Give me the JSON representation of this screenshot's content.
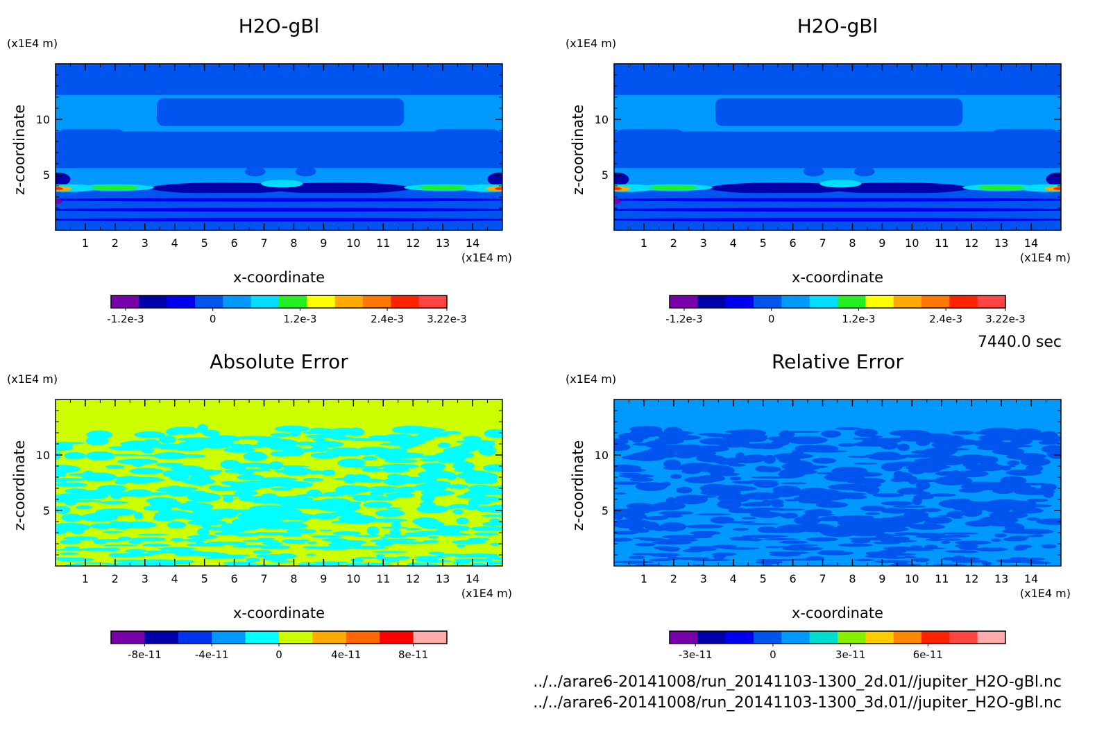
{
  "chart_data": [
    {
      "type": "heatmap",
      "title": "H2O-gBl",
      "xlabel": "x-coordinate",
      "ylabel": "z-coordinate",
      "x_unit": "(x1E4 m)",
      "y_unit": "(x1E4 m)",
      "x_ticks": [
        "1",
        "2",
        "3",
        "4",
        "5",
        "6",
        "7",
        "8",
        "9",
        "10",
        "11",
        "12",
        "13",
        "14"
      ],
      "y_ticks": [
        "5",
        "10"
      ],
      "xlim": [
        0,
        15
      ],
      "ylim": [
        0,
        15
      ],
      "colorbar": {
        "vmin": -0.0014,
        "vmax": 0.00322,
        "colors": [
          "#7700aa",
          "#0000aa",
          "#0000ee",
          "#0055ee",
          "#0099ff",
          "#00ddff",
          "#22ee22",
          "#ffff00",
          "#ffaa00",
          "#ff7700",
          "#ff2200",
          "#ff4444"
        ],
        "labels": [
          "-1.2e-3",
          "0",
          "1.2e-3",
          "2.4e-3",
          "3.22e-3"
        ],
        "label_values": [
          -0.0012,
          0,
          0.0012,
          0.0024,
          0.00322
        ]
      },
      "pattern": "field"
    },
    {
      "type": "heatmap",
      "title": "H2O-gBl",
      "xlabel": "x-coordinate",
      "ylabel": "z-coordinate",
      "x_unit": "(x1E4 m)",
      "y_unit": "(x1E4 m)",
      "x_ticks": [
        "1",
        "2",
        "3",
        "4",
        "5",
        "6",
        "7",
        "8",
        "9",
        "10",
        "11",
        "12",
        "13",
        "14"
      ],
      "y_ticks": [
        "5",
        "10"
      ],
      "xlim": [
        0,
        15
      ],
      "ylim": [
        0,
        15
      ],
      "colorbar": {
        "vmin": -0.0014,
        "vmax": 0.00322,
        "colors": [
          "#7700aa",
          "#0000aa",
          "#0000ee",
          "#0055ee",
          "#0099ff",
          "#00ddff",
          "#22ee22",
          "#ffff00",
          "#ffaa00",
          "#ff7700",
          "#ff2200",
          "#ff4444"
        ],
        "labels": [
          "-1.2e-3",
          "0",
          "1.2e-3",
          "2.4e-3",
          "3.22e-3"
        ],
        "label_values": [
          -0.0012,
          0,
          0.0012,
          0.0024,
          0.00322
        ]
      },
      "pattern": "field"
    },
    {
      "type": "heatmap",
      "title": "Absolute Error",
      "xlabel": "x-coordinate",
      "ylabel": "z-coordinate",
      "x_unit": "(x1E4 m)",
      "y_unit": "(x1E4 m)",
      "x_ticks": [
        "1",
        "2",
        "3",
        "4",
        "5",
        "6",
        "7",
        "8",
        "9",
        "10",
        "11",
        "12",
        "13",
        "14"
      ],
      "y_ticks": [
        "5",
        "10"
      ],
      "xlim": [
        0,
        15
      ],
      "ylim": [
        0,
        15
      ],
      "colorbar": {
        "vmin": -1e-10,
        "vmax": 1e-10,
        "colors": [
          "#7700aa",
          "#0000aa",
          "#0033ee",
          "#0099ff",
          "#00ffff",
          "#ccff00",
          "#ffaa00",
          "#ff6600",
          "#ff0000",
          "#ffaaaa"
        ],
        "labels": [
          "-8e-11",
          "-4e-11",
          "0",
          "4e-11",
          "8e-11"
        ],
        "label_values": [
          -8e-11,
          -4e-11,
          0,
          4e-11,
          8e-11
        ]
      },
      "pattern": "noise",
      "noise_colors": [
        "#ccff00",
        "#00ffff"
      ]
    },
    {
      "type": "heatmap",
      "title": "Relative Error",
      "xlabel": "x-coordinate",
      "ylabel": "z-coordinate",
      "x_unit": "(x1E4 m)",
      "y_unit": "(x1E4 m)",
      "x_ticks": [
        "1",
        "2",
        "3",
        "4",
        "5",
        "6",
        "7",
        "8",
        "9",
        "10",
        "11",
        "12",
        "13",
        "14"
      ],
      "y_ticks": [
        "5",
        "10"
      ],
      "xlim": [
        0,
        15
      ],
      "ylim": [
        0,
        15
      ],
      "colorbar": {
        "vmin": -4e-11,
        "vmax": 9e-11,
        "colors": [
          "#7700aa",
          "#0000aa",
          "#0000ee",
          "#0055ee",
          "#0099ff",
          "#00ddcc",
          "#88ee00",
          "#ffcc00",
          "#ff8800",
          "#ff2200",
          "#ff4444",
          "#ffaaaa"
        ],
        "labels": [
          "-3e-11",
          "0",
          "3e-11",
          "6e-11"
        ],
        "label_values": [
          -3e-11,
          0,
          3e-11,
          6e-11
        ]
      },
      "pattern": "noise",
      "noise_colors": [
        "#0099ff",
        "#0055ee"
      ]
    }
  ],
  "time_label": "7440.0 sec",
  "file_paths": [
    "../../arare6-20141008/run_20141103-1300_2d.01//jupiter_H2O-gBl.nc",
    "../../arare6-20141008/run_20141103-1300_3d.01//jupiter_H2O-gBl.nc"
  ]
}
